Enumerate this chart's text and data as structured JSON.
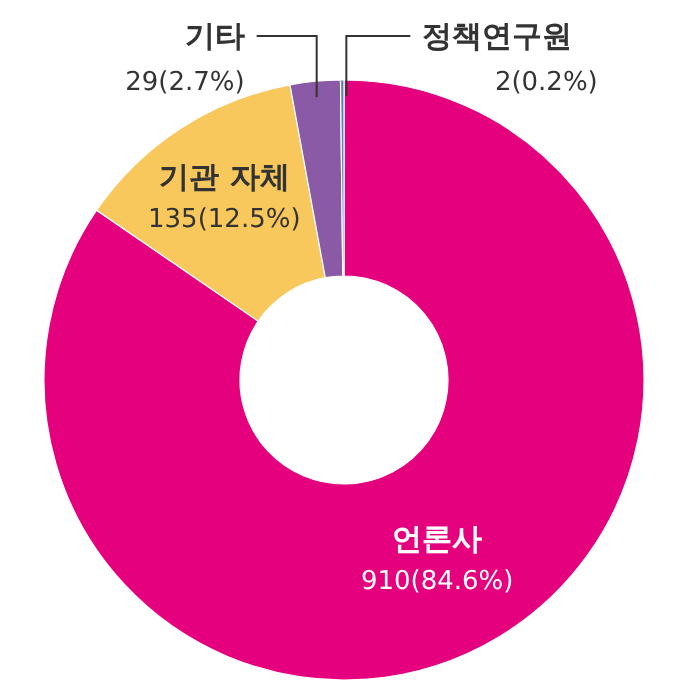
{
  "chart_data": {
    "type": "donut",
    "categories": [
      "언론사",
      "기관 자체",
      "기타",
      "정책연구원"
    ],
    "values": [
      910,
      135,
      29,
      2
    ],
    "value_labels": [
      "910(84.6%)",
      "135(12.5%)",
      "29(2.7%)",
      "2(0.2%)"
    ],
    "colors": [
      "#e5007d",
      "#f9c85c",
      "#8a5aa6",
      "#4f86b5"
    ]
  }
}
